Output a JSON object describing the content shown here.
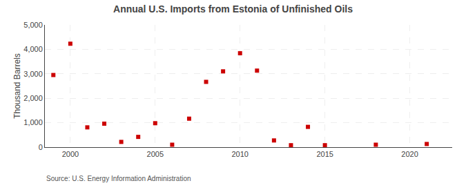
{
  "chart_data": {
    "type": "scatter",
    "title": "Annual U.S. Imports from Estonia of Unfinished Oils",
    "ylabel": "Thousand Barrels",
    "source": "Source: U.S. Energy Information Administration",
    "x": [
      1999,
      2000,
      2001,
      2002,
      2003,
      2004,
      2005,
      2006,
      2007,
      2008,
      2009,
      2010,
      2011,
      2012,
      2013,
      2014,
      2015,
      2018,
      2021
    ],
    "values": [
      2950,
      4230,
      810,
      960,
      215,
      420,
      980,
      100,
      1165,
      2670,
      3100,
      3840,
      3130,
      275,
      80,
      830,
      80,
      100,
      130
    ],
    "color": "#cc0000",
    "marker": "square",
    "xlim": [
      1998.5,
      2022.5
    ],
    "xticks": [
      2000,
      2005,
      2010,
      2015,
      2020
    ],
    "ylim": [
      0,
      5000
    ],
    "yticks": [
      0,
      {
        "value": 1000,
        "label": "1,000"
      },
      {
        "value": 2000,
        "label": "2,000"
      },
      {
        "value": 3000,
        "label": "3,000"
      },
      {
        "value": 4000,
        "label": "4,000"
      },
      {
        "value": 5000,
        "label": "5,000"
      }
    ],
    "grid": true
  }
}
